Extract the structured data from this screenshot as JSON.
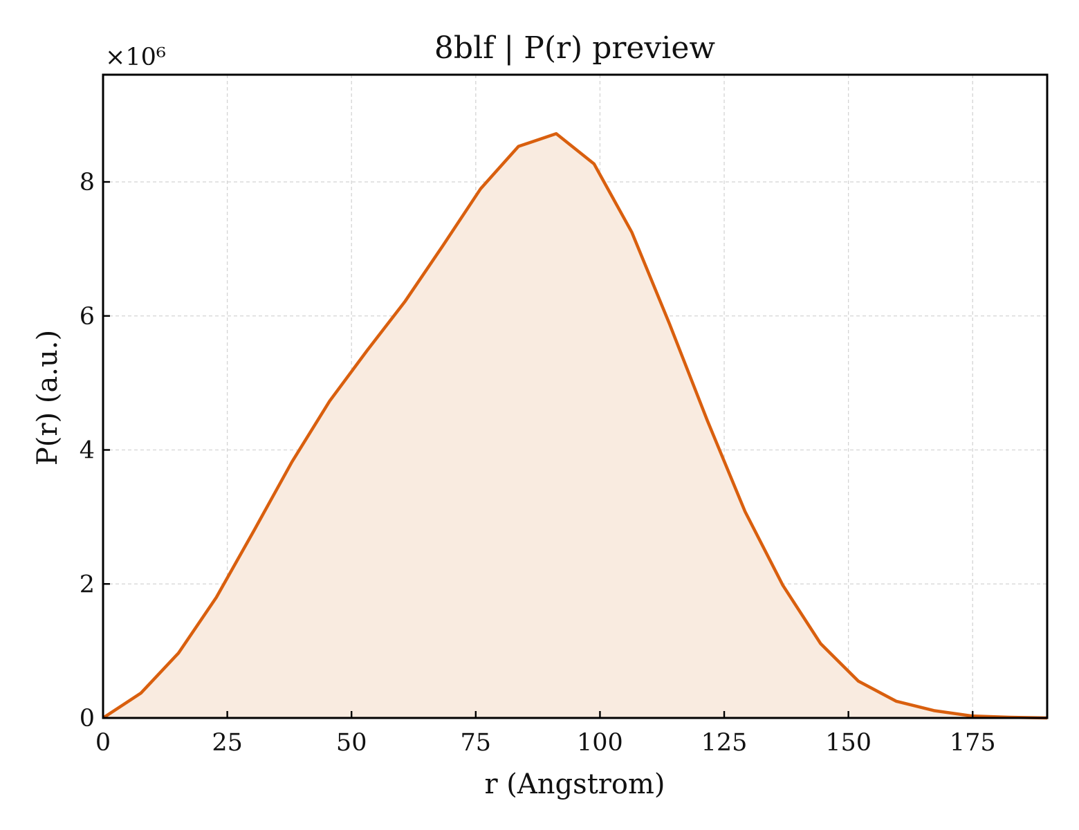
{
  "chart_data": {
    "type": "area",
    "title": "8blf | P(r) preview",
    "xlabel": "r (Angstrom)",
    "ylabel": "P(r) (a.u.)",
    "y_multiplier_label": "×10⁶",
    "xlim": [
      0,
      190
    ],
    "ylim": [
      0,
      9.6
    ],
    "xticks": [
      0,
      25,
      50,
      75,
      100,
      125,
      150,
      175
    ],
    "xtick_labels": [
      "0",
      "25",
      "50",
      "75",
      "100",
      "125",
      "150",
      "175"
    ],
    "yticks": [
      0,
      2,
      4,
      6,
      8
    ],
    "ytick_labels": [
      "0",
      "2",
      "4",
      "6",
      "8"
    ],
    "grid": true,
    "line_color": "#d95f0e",
    "fill_color": "#f9ebe0",
    "series": [
      {
        "x": [
          0,
          7.6,
          15.2,
          22.8,
          30.4,
          38.0,
          45.6,
          53.2,
          60.8,
          68.4,
          76.0,
          83.6,
          91.2,
          98.8,
          106.4,
          114.0,
          121.6,
          129.2,
          136.8,
          144.4,
          152.0,
          159.6,
          167.2,
          174.8,
          182.4,
          190.0
        ],
        "y": [
          0.0,
          0.37,
          0.97,
          1.8,
          2.8,
          3.82,
          4.73,
          5.49,
          6.22,
          7.05,
          7.9,
          8.53,
          8.72,
          8.27,
          7.25,
          5.88,
          4.44,
          3.08,
          1.98,
          1.11,
          0.55,
          0.25,
          0.11,
          0.03,
          0.01,
          0.0
        ]
      }
    ]
  }
}
